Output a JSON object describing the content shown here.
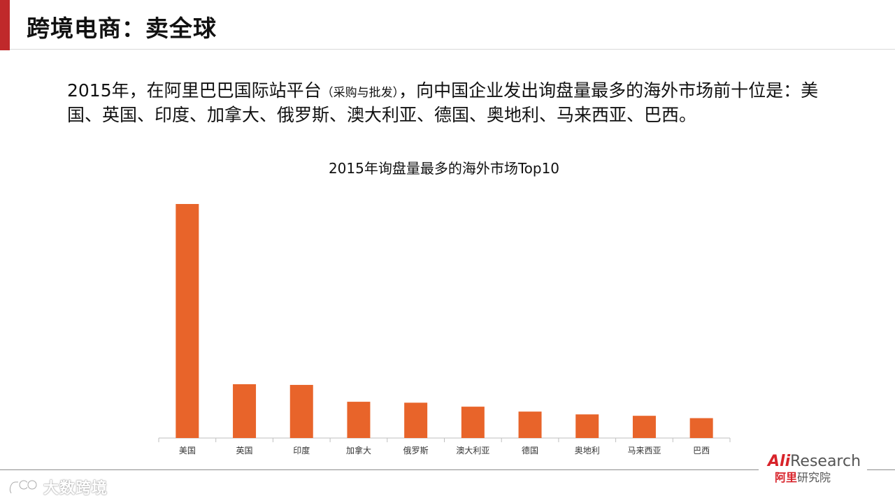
{
  "slide": {
    "title": "跨境电商：卖全球",
    "accent_color": "#c0292b"
  },
  "intro": {
    "part1": "2015年，在阿里巴巴国际站平台",
    "part2": "（采购与批发）",
    "part3": "，向中国企业发出询盘量最多的海外市场前十位是：美国、英国、印度、加拿大、俄罗斯、澳大利亚、德国、奥地利、马来西亚、巴西。"
  },
  "chart_data": {
    "type": "bar",
    "title": "2015年询盘量最多的海外市场Top10",
    "categories": [
      "美国",
      "英国",
      "印度",
      "加拿大",
      "俄罗斯",
      "澳大利亚",
      "德国",
      "奥地利",
      "马来西亚",
      "巴西"
    ],
    "values": [
      100,
      23,
      22.7,
      15.5,
      15.1,
      13.4,
      11.3,
      10.1,
      9.5,
      8.5
    ],
    "ylim": [
      0,
      100
    ],
    "xlabel": "",
    "ylabel": "",
    "grid": false,
    "bar_color": "#e8642a"
  },
  "logo": {
    "ali_en": "Ali",
    "research_en": "Research",
    "cn_red": "阿里",
    "cn_gray": "研究院"
  },
  "watermark": {
    "text": "大数跨境",
    "icon": "link-icon"
  }
}
